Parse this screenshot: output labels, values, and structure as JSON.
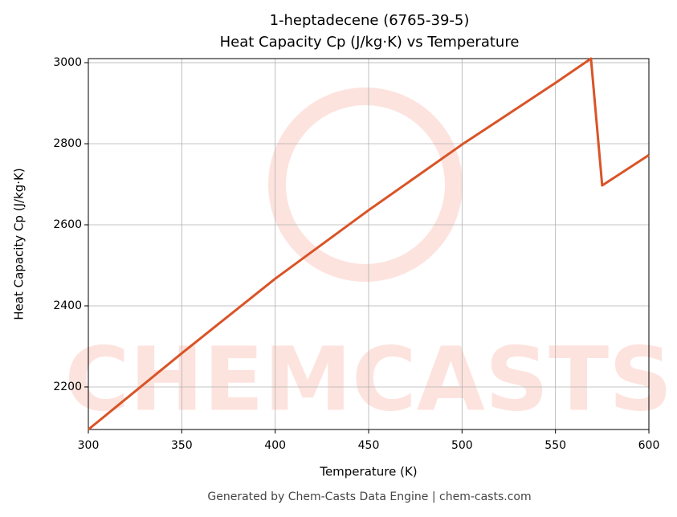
{
  "chart_data": {
    "type": "line",
    "title": [
      "1-heptadecene (6765-39-5)",
      "Heat Capacity Cp (J/kg·K) vs Temperature"
    ],
    "xlabel": "Temperature (K)",
    "ylabel": "Heat Capacity Cp (J/kg·K)",
    "watermark": "CHEMCASTS",
    "footer": "Generated by Chem-Casts Data Engine | chem-casts.com",
    "x": [
      300,
      350,
      400,
      450,
      500,
      550,
      569,
      575,
      600
    ],
    "series": [
      {
        "name": "Cp",
        "color": "#d95427",
        "values": [
          2095,
          2283,
          2467,
          2636,
          2798,
          2950,
          3010,
          2697,
          2772
        ]
      }
    ],
    "xlim": [
      300,
      600
    ],
    "xticks": [
      300,
      350,
      400,
      450,
      500,
      550,
      600
    ],
    "ylim": [
      2095,
      3010
    ],
    "yticks": [
      2200,
      2400,
      2600,
      2800,
      3000
    ],
    "grid": true
  }
}
